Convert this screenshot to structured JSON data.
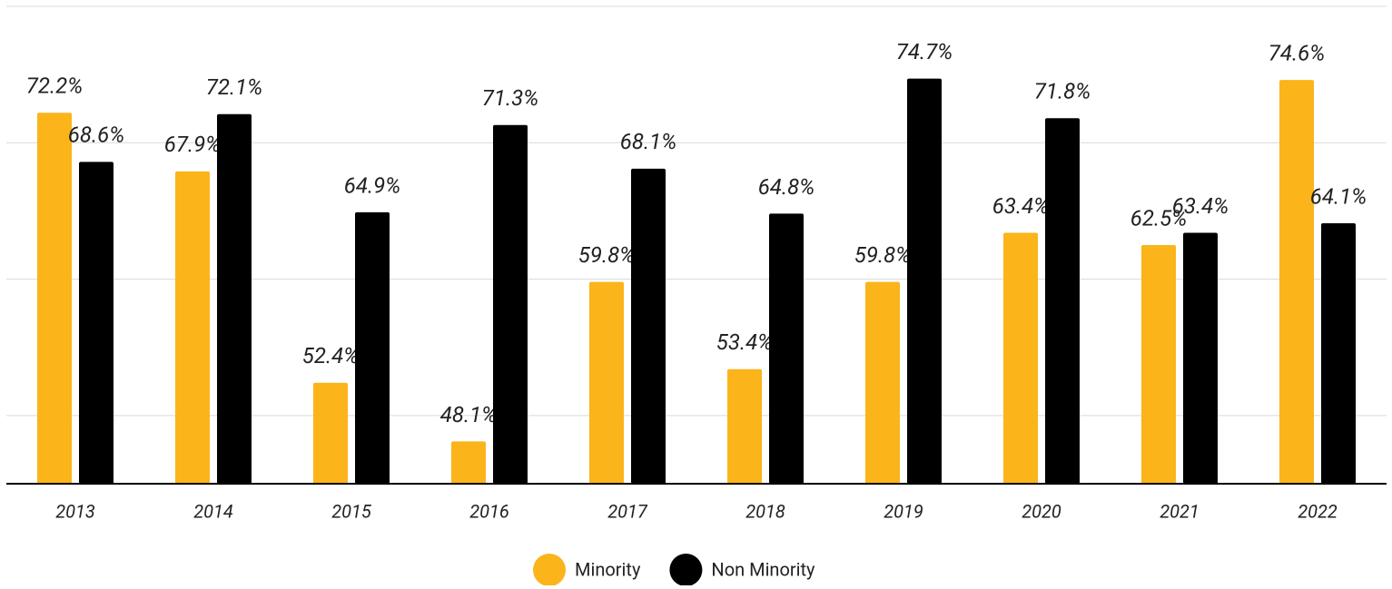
{
  "chart_data": {
    "type": "bar",
    "categories": [
      "2013",
      "2014",
      "2015",
      "2016",
      "2017",
      "2018",
      "2019",
      "2020",
      "2021",
      "2022"
    ],
    "series": [
      {
        "name": "Minority",
        "color": "#fbb41a",
        "values": [
          72.2,
          67.9,
          52.4,
          48.1,
          59.8,
          53.4,
          59.8,
          63.4,
          62.5,
          74.6
        ],
        "value_labels": [
          "72.2%",
          "67.9%",
          "52.4%",
          "48.1%",
          "59.8%",
          "53.4%",
          "59.8%",
          "63.4%",
          "62.5%",
          "74.6%"
        ]
      },
      {
        "name": "Non Minority",
        "color": "#000000",
        "values": [
          68.6,
          72.1,
          64.9,
          71.3,
          68.1,
          64.8,
          74.7,
          71.8,
          63.4,
          64.1
        ],
        "value_labels": [
          "68.6%",
          "72.1%",
          "64.9%",
          "71.3%",
          "68.1%",
          "64.8%",
          "74.7%",
          "71.8%",
          "63.4%",
          "64.1%"
        ]
      }
    ],
    "ylim": [
      45,
      80
    ],
    "yticks": [
      50,
      60,
      70,
      80
    ],
    "grid": true,
    "legend": "bottom"
  }
}
